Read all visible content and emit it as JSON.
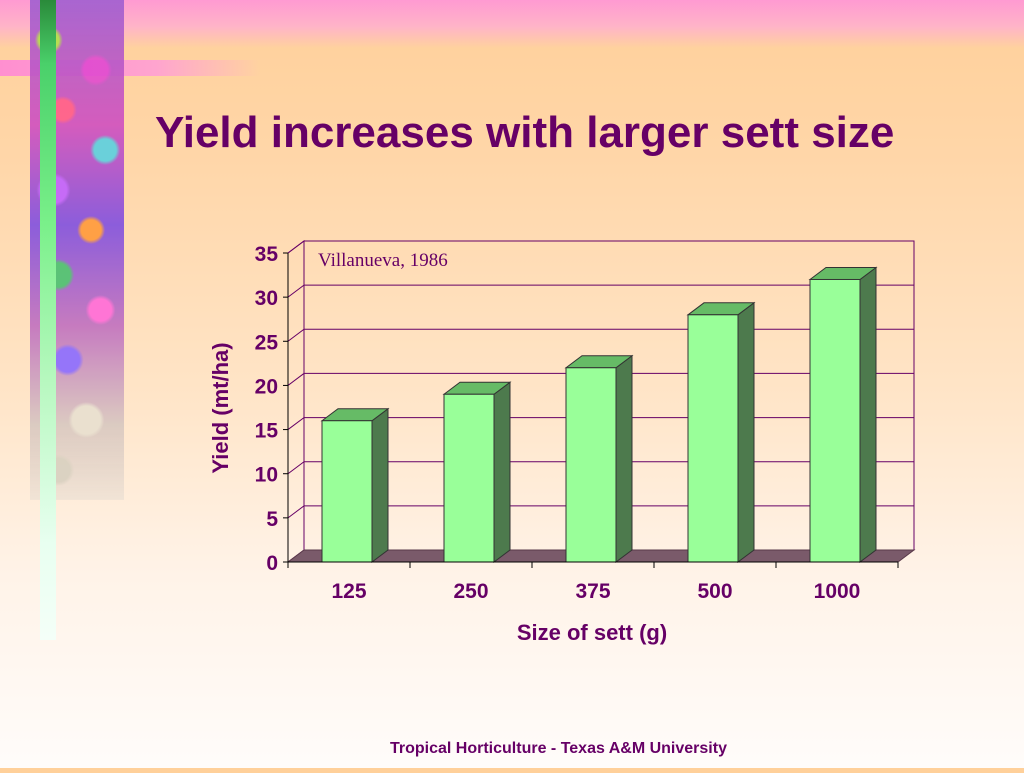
{
  "slide": {
    "title": "Yield increases with larger sett size",
    "footer": "Tropical Horticulture - Texas A&M University"
  },
  "colors": {
    "title": "#660066",
    "bar_front": "#99ff99",
    "bar_top": "#66bb66",
    "bar_side": "#4d7a4d",
    "gridline": "#660066",
    "floor": "#7a5a6a"
  },
  "chart_data": {
    "type": "bar",
    "style": "3d-column",
    "categories": [
      "125",
      "250",
      "375",
      "500",
      "1000"
    ],
    "values": [
      16,
      19,
      22,
      28,
      32
    ],
    "xlabel": "Size of sett (g)",
    "ylabel": "Yield (mt/ha)",
    "ylim": [
      0,
      35
    ],
    "yticks": [
      0,
      5,
      10,
      15,
      20,
      25,
      30,
      35
    ],
    "annotation": "Villanueva, 1986",
    "grid": true,
    "legend": "none"
  }
}
